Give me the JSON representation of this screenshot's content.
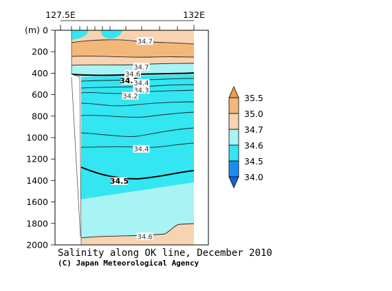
{
  "chart_data": {
    "type": "contour",
    "title": "Salinity along OK line, December 2010",
    "credit": "(C) Japan Meteorological Agency",
    "x_axis": {
      "ticks": [
        "127.5E",
        "132E"
      ]
    },
    "y_axis": {
      "unit": "(m)",
      "ticks": [
        "0",
        "200",
        "400",
        "600",
        "800",
        "1000",
        "1200",
        "1400",
        "1600",
        "1800",
        "2000"
      ],
      "range": [
        0,
        2000
      ],
      "inverted": true
    },
    "colorbar": {
      "levels": [
        "35.5",
        "35.0",
        "34.7",
        "34.6",
        "34.5",
        "34.0"
      ],
      "colors": [
        "#f4a040",
        "#f4b77a",
        "#f7d3b2",
        "#a8f3f3",
        "#33e6f2",
        "#1a8ef0",
        "#1464d8"
      ]
    },
    "contour_labels": [
      {
        "text": "34.7",
        "x_km_frac": 0.6,
        "depth": 100
      },
      {
        "text": "34.7",
        "x_km_frac": 0.57,
        "depth": 340
      },
      {
        "text": "34.6",
        "x_km_frac": 0.5,
        "depth": 405
      },
      {
        "text": "34.5",
        "x_km_frac": 0.47,
        "depth": 470,
        "bold": true
      },
      {
        "text": "34.4",
        "x_km_frac": 0.57,
        "depth": 490
      },
      {
        "text": "34.3",
        "x_km_frac": 0.57,
        "depth": 555
      },
      {
        "text": "34.2",
        "x_km_frac": 0.48,
        "depth": 610
      },
      {
        "text": "34.4",
        "x_km_frac": 0.57,
        "depth": 1105
      },
      {
        "text": "34.5",
        "x_km_frac": 0.39,
        "depth": 1405,
        "bold": true
      },
      {
        "text": "34.6",
        "x_km_frac": 0.6,
        "depth": 1920
      }
    ]
  }
}
